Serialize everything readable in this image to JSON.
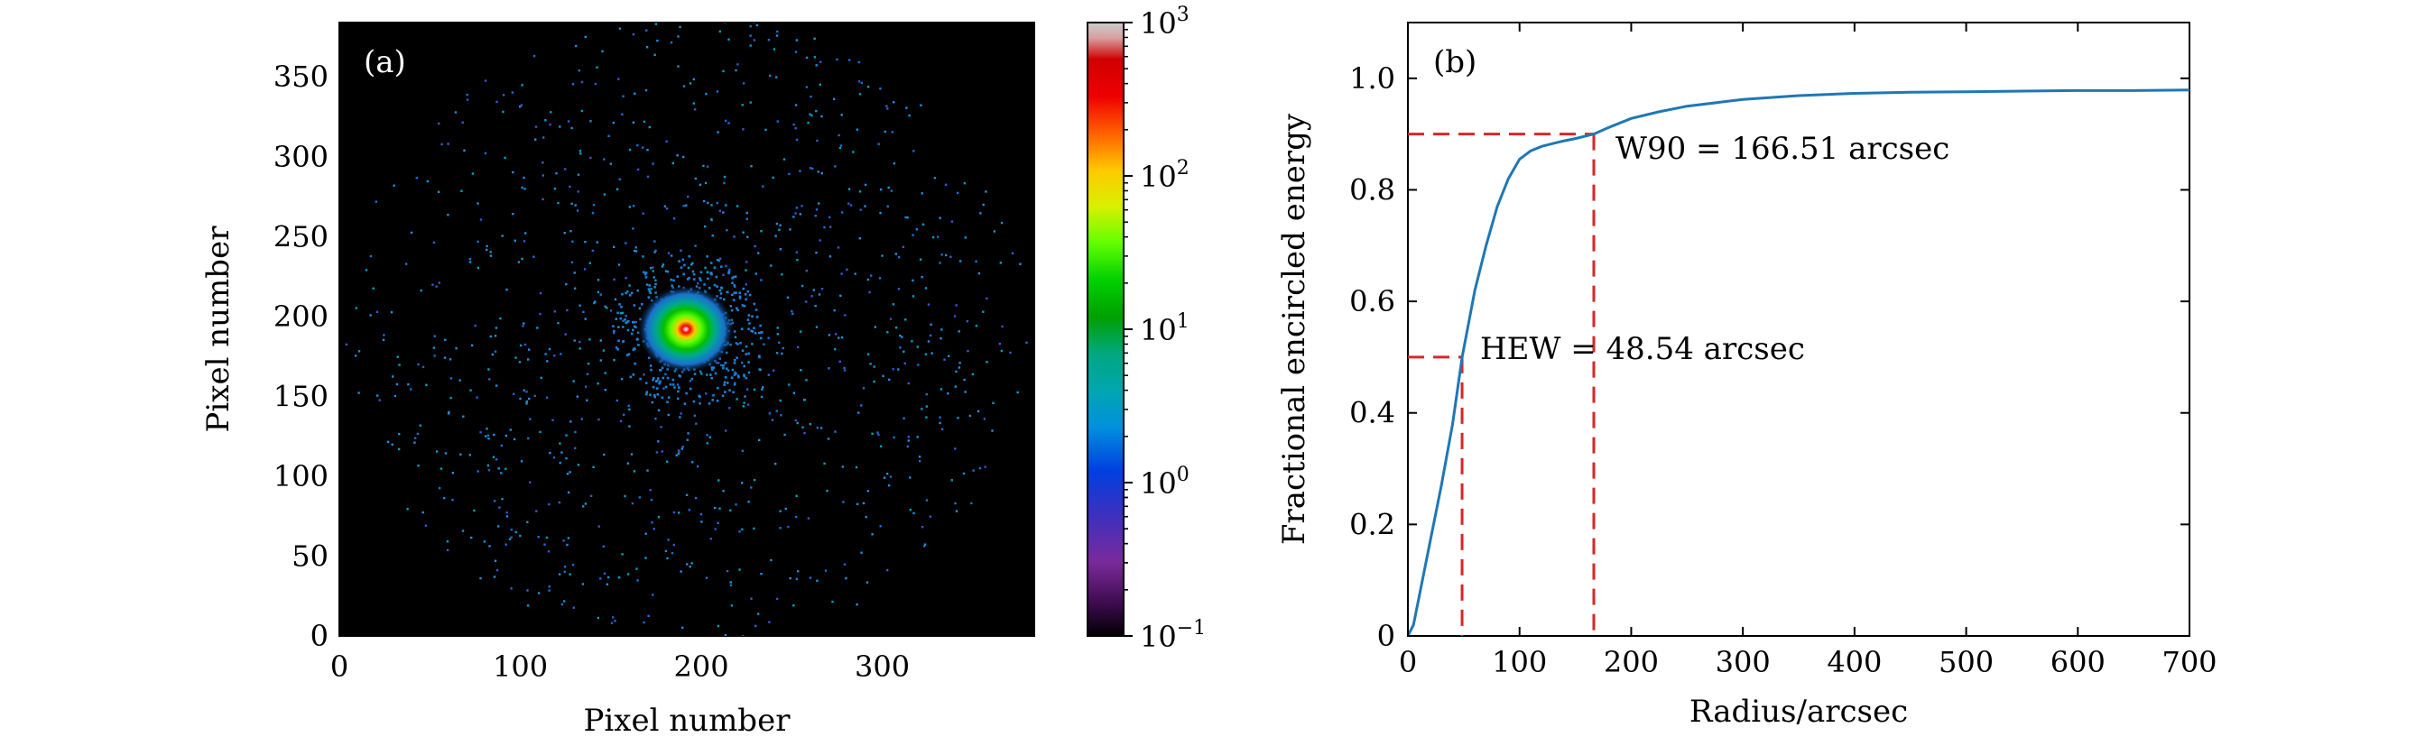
{
  "chart_data": [
    {
      "type": "heatmap",
      "panel_label": "(a)",
      "xlabel": "Pixel number",
      "ylabel": "Pixel number",
      "xlim": [
        0,
        384
      ],
      "ylim": [
        0,
        384
      ],
      "xticks": [
        0,
        100,
        200,
        300
      ],
      "yticks": [
        0,
        50,
        100,
        150,
        200,
        250,
        300,
        350
      ],
      "background": "#000000",
      "peak_center": [
        192,
        192
      ],
      "colorbar": {
        "scale": "log",
        "range": [
          0.1,
          1000
        ],
        "colormap": "nipy_spectral",
        "ticks": [
          {
            "value": 1000,
            "base": "10",
            "exp": "3"
          },
          {
            "value": 100,
            "base": "10",
            "exp": "2"
          },
          {
            "value": 10,
            "base": "10",
            "exp": "1"
          },
          {
            "value": 1,
            "base": "10",
            "exp": "0"
          },
          {
            "value": 0.1,
            "base": "10",
            "exp": "−1"
          }
        ]
      }
    },
    {
      "type": "line",
      "panel_label": "(b)",
      "xlabel": "Radius/arcsec",
      "ylabel": "Fractional encircled energy",
      "xlim": [
        0,
        700
      ],
      "ylim": [
        0,
        1.1
      ],
      "xticks": [
        0,
        100,
        200,
        300,
        400,
        500,
        600,
        700
      ],
      "yticks": [
        {
          "value": 0,
          "label": "0"
        },
        {
          "value": 0.2,
          "label": "0.2"
        },
        {
          "value": 0.4,
          "label": "0.4"
        },
        {
          "value": 0.6,
          "label": "0.6"
        },
        {
          "value": 0.8,
          "label": "0.8"
        },
        {
          "value": 1.0,
          "label": "1.0"
        }
      ],
      "series": [
        {
          "color": "#1f77b4",
          "x": [
            0,
            5,
            10,
            20,
            30,
            40,
            48.54,
            60,
            70,
            80,
            90,
            100,
            110,
            120,
            130,
            140,
            150,
            166.51,
            180,
            200,
            225,
            250,
            300,
            350,
            400,
            450,
            500,
            550,
            600,
            650,
            700
          ],
          "y": [
            0.0,
            0.02,
            0.07,
            0.17,
            0.27,
            0.38,
            0.5,
            0.62,
            0.7,
            0.77,
            0.82,
            0.855,
            0.87,
            0.878,
            0.883,
            0.888,
            0.892,
            0.9,
            0.912,
            0.928,
            0.94,
            0.95,
            0.962,
            0.969,
            0.973,
            0.975,
            0.976,
            0.977,
            0.978,
            0.978,
            0.979
          ]
        }
      ],
      "annotations": [
        {
          "label": "HEW",
          "x": 48.54,
          "y": 0.5,
          "text_prefix": "HEW = ",
          "value": "48.54",
          "unit": " arcsec"
        },
        {
          "label": "W90",
          "x": 166.51,
          "y": 0.9,
          "text_prefix": "W90 = ",
          "value": "166.51",
          "unit": " arcsec"
        }
      ],
      "guide_color": "#d62728"
    }
  ]
}
